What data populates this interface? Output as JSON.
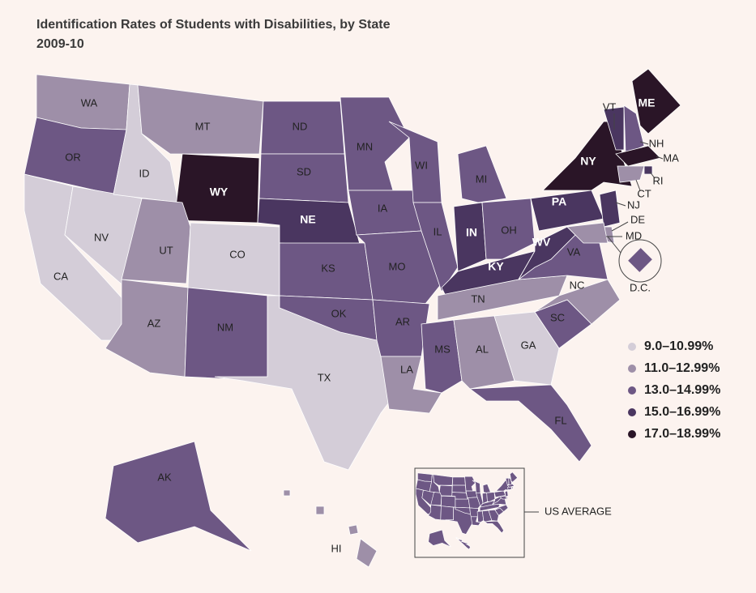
{
  "title": "Identification Rates of Students with Disabilities, by State",
  "subtitle": "2009-10",
  "legend": [
    {
      "label": "9.0–10.99%",
      "color": "#d4cdd8"
    },
    {
      "label": "11.0–12.99%",
      "color": "#9e8fa8"
    },
    {
      "label": "13.0–14.99%",
      "color": "#6d5784"
    },
    {
      "label": "15.0–16.99%",
      "color": "#4a3660"
    },
    {
      "label": "17.0–18.99%",
      "color": "#2a1527"
    }
  ],
  "states": [
    {
      "label": "WA",
      "color": "#9e8fa8"
    },
    {
      "label": "OR",
      "color": "#6d5784"
    },
    {
      "label": "CA",
      "color": "#d4cdd8"
    },
    {
      "label": "NV",
      "color": "#d4cdd8"
    },
    {
      "label": "ID",
      "color": "#d4cdd8"
    },
    {
      "label": "MT",
      "color": "#9e8fa8"
    },
    {
      "label": "WY",
      "color": "#2a1527"
    },
    {
      "label": "UT",
      "color": "#9e8fa8"
    },
    {
      "label": "CO",
      "color": "#d4cdd8"
    },
    {
      "label": "AZ",
      "color": "#9e8fa8"
    },
    {
      "label": "NM",
      "color": "#6d5784"
    },
    {
      "label": "TX",
      "color": "#d4cdd8"
    },
    {
      "label": "ND",
      "color": "#6d5784"
    },
    {
      "label": "SD",
      "color": "#6d5784"
    },
    {
      "label": "NE",
      "color": "#4a3660"
    },
    {
      "label": "KS",
      "color": "#6d5784"
    },
    {
      "label": "OK",
      "color": "#6d5784"
    },
    {
      "label": "MN",
      "color": "#6d5784"
    },
    {
      "label": "IA",
      "color": "#6d5784"
    },
    {
      "label": "MO",
      "color": "#6d5784"
    },
    {
      "label": "AR",
      "color": "#6d5784"
    },
    {
      "label": "LA",
      "color": "#9e8fa8"
    },
    {
      "label": "WI",
      "color": "#6d5784"
    },
    {
      "label": "IL",
      "color": "#6d5784"
    },
    {
      "label": "MI",
      "color": "#6d5784"
    },
    {
      "label": "IN",
      "color": "#4a3660"
    },
    {
      "label": "OH",
      "color": "#6d5784"
    },
    {
      "label": "KY",
      "color": "#4a3660"
    },
    {
      "label": "TN",
      "color": "#9e8fa8"
    },
    {
      "label": "MS",
      "color": "#6d5784"
    },
    {
      "label": "AL",
      "color": "#9e8fa8"
    },
    {
      "label": "GA",
      "color": "#d4cdd8"
    },
    {
      "label": "FL",
      "color": "#6d5784"
    },
    {
      "label": "SC",
      "color": "#6d5784"
    },
    {
      "label": "NC",
      "color": "#9e8fa8"
    },
    {
      "label": "VA",
      "color": "#6d5784"
    },
    {
      "label": "WV",
      "color": "#4a3660"
    },
    {
      "label": "PA",
      "color": "#4a3660"
    },
    {
      "label": "NY",
      "color": "#2a1527"
    },
    {
      "label": "VT",
      "color": "#4a3660"
    },
    {
      "label": "NH",
      "color": "#6d5784"
    },
    {
      "label": "ME",
      "color": "#2a1527"
    },
    {
      "label": "MA",
      "color": "#2a1527"
    },
    {
      "label": "RI",
      "color": "#4a3660"
    },
    {
      "label": "CT",
      "color": "#9e8fa8"
    },
    {
      "label": "NJ",
      "color": "#4a3660"
    },
    {
      "label": "DE",
      "color": "#9e8fa8"
    },
    {
      "label": "MD",
      "color": "#9e8fa8"
    },
    {
      "label": "D.C.",
      "color": "#6d5784"
    },
    {
      "label": "AK",
      "color": "#6d5784"
    },
    {
      "label": "HI",
      "color": "#9e8fa8"
    }
  ],
  "us_average": {
    "label": "US AVERAGE",
    "color": "#6d5784"
  }
}
